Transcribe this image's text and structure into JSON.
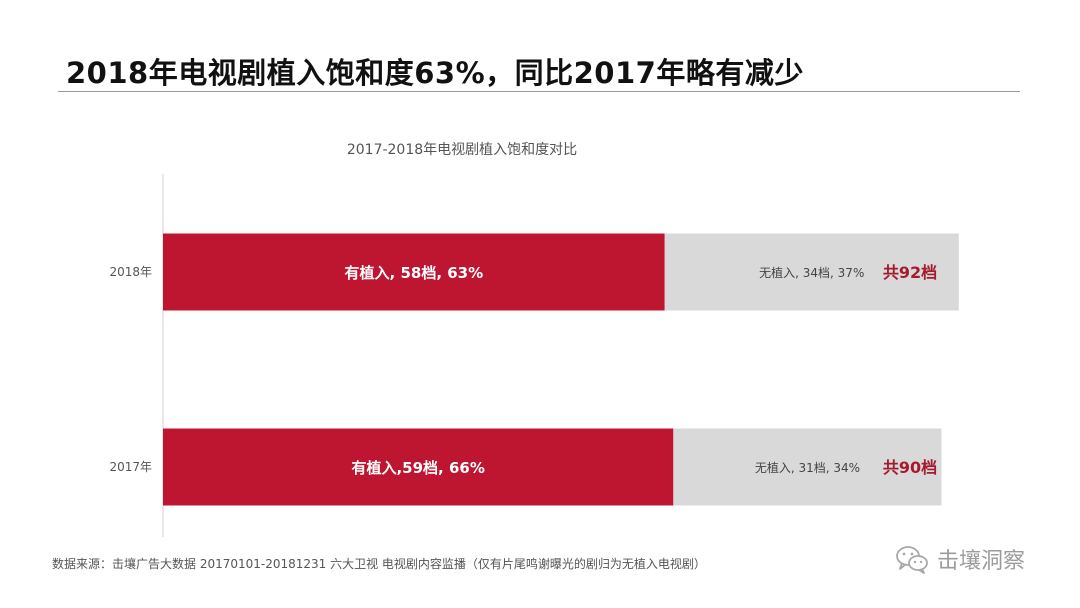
{
  "slide": {
    "title": "2018年电视剧植入饱和度63%，同比2017年略有减少",
    "source_note": "数据来源：击壤广告大数据 20170101-20181231 六大卫视 电视剧内容监播（仅有片尾鸣谢曝光的剧归为无植入电视剧）",
    "watermark": "击壤洞察",
    "watermark_icon": "wechat-icon"
  },
  "chart_data": {
    "type": "bar",
    "orientation": "horizontal",
    "stacked": true,
    "title": "2017-2018年电视剧植入饱和度对比",
    "categories": [
      "2018年",
      "2017年"
    ],
    "series": [
      {
        "values": [
          58,
          59
        ],
        "color": "#be1530",
        "labels": [
          "有植入, 58档, 63%",
          "有植入,59档, 66%"
        ]
      },
      {
        "values": [
          34,
          31
        ],
        "color": "#d9d9d9",
        "labels": [
          "无植入, 34档, 37%",
          "无植入, 31档, 34%"
        ]
      }
    ],
    "totals": [
      "共92档",
      "共90档"
    ],
    "totals_color": "#a51b2e",
    "xlim": [
      0,
      100
    ],
    "legend": "none",
    "grid": false
  }
}
